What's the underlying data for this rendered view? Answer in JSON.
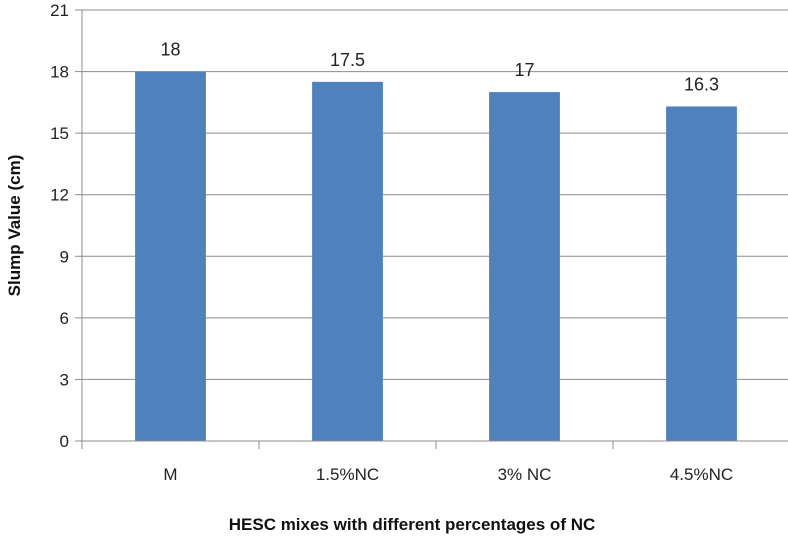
{
  "chart_data": {
    "type": "bar",
    "categories": [
      "M",
      "1.5%NC",
      "3% NC",
      "4.5%NC"
    ],
    "values": [
      18,
      17.5,
      17,
      16.3
    ],
    "data_labels": [
      "18",
      "17.5",
      "17",
      "16.3"
    ],
    "title": "",
    "xlabel": "HESC mixes with different percentages of NC",
    "ylabel": "Slump Value (cm)",
    "ylim": [
      0,
      21
    ],
    "yticks": [
      0,
      3,
      6,
      9,
      12,
      15,
      18,
      21
    ],
    "grid": true,
    "legend": "none",
    "bar_color": "#4f81bd"
  }
}
